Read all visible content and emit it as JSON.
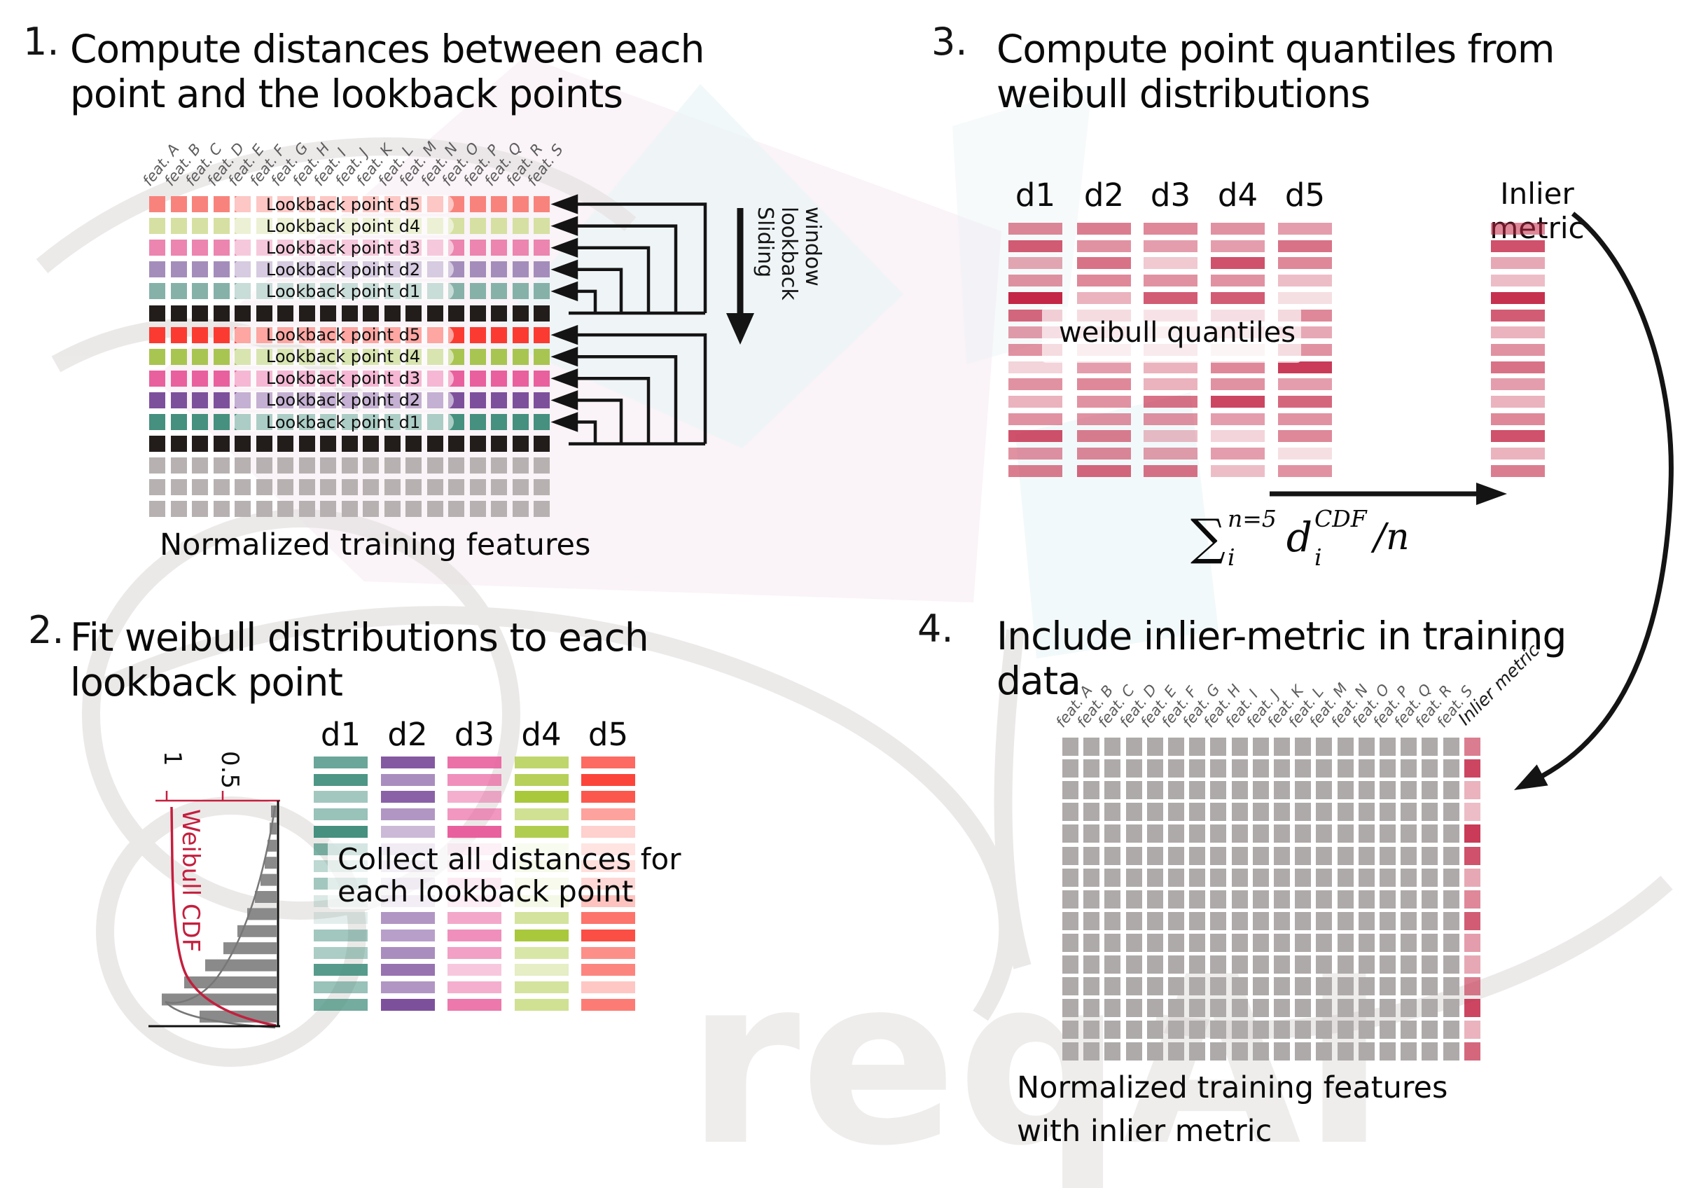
{
  "panel1": {
    "number": "1.",
    "title_line1": "Compute distances between each",
    "title_line2": "point and the lookback points",
    "caption": "Normalized training features",
    "feature_prefix": "feat. ",
    "feature_letters": [
      "A",
      "B",
      "C",
      "D",
      "E",
      "F",
      "G",
      "H",
      "I",
      "J",
      "K",
      "L",
      "M",
      "N",
      "O",
      "P",
      "Q",
      "R",
      "S"
    ],
    "sliding_lines": [
      "Sliding",
      "lookback",
      "window"
    ],
    "rows": [
      {
        "type": "lookback",
        "color": "#f8837c",
        "label": "Lookback point d5"
      },
      {
        "type": "lookback",
        "color": "#d6e0a2",
        "label": "Lookback point d4"
      },
      {
        "type": "lookback",
        "color": "#ec85b0",
        "label": "Lookback point d3"
      },
      {
        "type": "lookback",
        "color": "#a48dbb",
        "label": "Lookback point d2"
      },
      {
        "type": "lookback",
        "color": "#85b1a9",
        "label": "Lookback point d1"
      },
      {
        "type": "current",
        "color": "#221d1b",
        "label": ""
      },
      {
        "type": "lookback",
        "color": "#fb3b31",
        "label": "Lookback point d5"
      },
      {
        "type": "lookback",
        "color": "#a9c551",
        "label": "Lookback point d4"
      },
      {
        "type": "lookback",
        "color": "#e9609e",
        "label": "Lookback point d3"
      },
      {
        "type": "lookback",
        "color": "#7d509c",
        "label": "Lookback point d2"
      },
      {
        "type": "lookback",
        "color": "#45907f",
        "label": "Lookback point d1"
      },
      {
        "type": "current",
        "color": "#221d1b",
        "label": ""
      },
      {
        "type": "plain",
        "color": "#b7b2b1",
        "label": ""
      },
      {
        "type": "plain",
        "color": "#b7b2b1",
        "label": ""
      },
      {
        "type": "plain",
        "color": "#b7b2b1",
        "label": ""
      }
    ]
  },
  "panel2": {
    "number": "2.",
    "title_line1": "Fit weibull distributions to each",
    "title_line2": "lookback point",
    "overlay_line1": "Collect all distances for",
    "overlay_line2": "each lookback point",
    "plot": {
      "cdf_label": "Weibull CDF",
      "tick_top": "1",
      "tick_mid": "0.5",
      "cdf_color": "#c41f3e",
      "hist_color": "#8a8a8a",
      "bar_lengths": [
        8,
        10,
        13,
        17,
        23,
        31,
        42,
        56,
        76,
        102,
        132,
        164,
        110
      ]
    },
    "columns": [
      {
        "label": "d1",
        "color": "#45907f",
        "opacities": [
          0.8,
          0.95,
          0.5,
          0.55,
          1,
          0.7,
          0.35,
          0.5,
          0.2,
          0.15,
          0.5,
          0.45,
          0.9,
          0.55,
          0.75
        ]
      },
      {
        "label": "d2",
        "color": "#7d509c",
        "opacities": [
          0.95,
          0.65,
          0.9,
          0.6,
          0.4,
          0.35,
          0.3,
          0.25,
          0.3,
          0.6,
          0.55,
          0.65,
          0.8,
          0.6,
          1
        ]
      },
      {
        "label": "d3",
        "color": "#e9609e",
        "opacities": [
          0.9,
          0.7,
          0.5,
          0.65,
          1,
          0.3,
          0.25,
          0.4,
          0.35,
          0.55,
          0.7,
          0.6,
          0.35,
          0.5,
          0.85
        ]
      },
      {
        "label": "d4",
        "color": "#a9c83c",
        "opacities": [
          0.75,
          0.85,
          1,
          0.55,
          0.9,
          0.25,
          0.35,
          0.3,
          0.4,
          0.5,
          1,
          0.45,
          0.3,
          0.5,
          0.55
        ]
      },
      {
        "label": "d5",
        "color": "#fb453a",
        "opacities": [
          0.8,
          1,
          0.9,
          0.5,
          0.25,
          0.45,
          0.55,
          0.65,
          1,
          0.75,
          0.95,
          0.6,
          0.65,
          0.3,
          0.7
        ]
      }
    ]
  },
  "panel3": {
    "number": "3.",
    "title_line1": "Compute point quantiles from",
    "title_line2": "weibull distributions",
    "overlay": "weibull quantiles",
    "inlier_label": "Inlier metric",
    "bar_color": "#c32646",
    "columns": [
      {
        "label": "d1",
        "opacities": [
          0.55,
          0.75,
          0.4,
          0.5,
          1,
          0.7,
          0.45,
          0.5,
          0.2,
          0.5,
          0.35,
          0.5,
          0.8,
          0.5,
          0.6
        ]
      },
      {
        "label": "d2",
        "opacities": [
          0.6,
          0.5,
          0.65,
          0.55,
          0.35,
          0.5,
          0.3,
          0.25,
          0.45,
          0.55,
          0.5,
          0.5,
          0.6,
          0.55,
          0.7
        ]
      },
      {
        "label": "d3",
        "opacities": [
          0.55,
          0.45,
          0.25,
          0.5,
          0.75,
          0.4,
          0.2,
          0.3,
          0.35,
          0.35,
          0.65,
          0.5,
          0.3,
          0.45,
          0.65
        ]
      },
      {
        "label": "d4",
        "opacities": [
          0.5,
          0.45,
          0.8,
          0.5,
          0.75,
          0.45,
          0.3,
          0.15,
          0.55,
          0.5,
          0.85,
          0.45,
          0.2,
          0.45,
          0.3
        ]
      },
      {
        "label": "d5",
        "opacities": [
          0.45,
          0.65,
          0.55,
          0.3,
          0.15,
          0.55,
          0.4,
          0.5,
          0.9,
          0.45,
          0.7,
          0.5,
          0.55,
          0.15,
          0.5
        ]
      }
    ],
    "inlier_opacities": [
      0.55,
      0.8,
      0.4,
      0.3,
      0.95,
      0.75,
      0.35,
      0.5,
      0.65,
      0.45,
      0.35,
      0.55,
      0.8,
      0.35,
      0.6
    ],
    "formula": {
      "sum": "∑",
      "sum_sup": "n=5",
      "sum_sub": "i",
      "term": "d",
      "term_sup": "CDF",
      "term_sub": "i",
      "tail": "/n"
    }
  },
  "panel4": {
    "number": "4.",
    "title_line1": "Include inlier-metric in training",
    "title_line2": "data",
    "caption_line1": "Normalized training features",
    "caption_line2": "with inlier metric",
    "feature_prefix": "feat. ",
    "feature_letters": [
      "A",
      "B",
      "C",
      "D",
      "E",
      "F",
      "G",
      "H",
      "I",
      "J",
      "K",
      "L",
      "M",
      "N",
      "O",
      "P",
      "Q",
      "R",
      "S"
    ],
    "inlier_label": "Inlier metric",
    "grid": {
      "rows": 15,
      "gray_cols": 19,
      "gray_color": "#aeaaa9",
      "inlier_color": "#c32646",
      "inlier_opacities": [
        0.6,
        0.85,
        0.35,
        0.3,
        0.9,
        0.8,
        0.4,
        0.55,
        0.75,
        0.45,
        0.4,
        0.6,
        0.85,
        0.35,
        0.7
      ]
    }
  },
  "watermark": {
    "text": "reqAI"
  }
}
